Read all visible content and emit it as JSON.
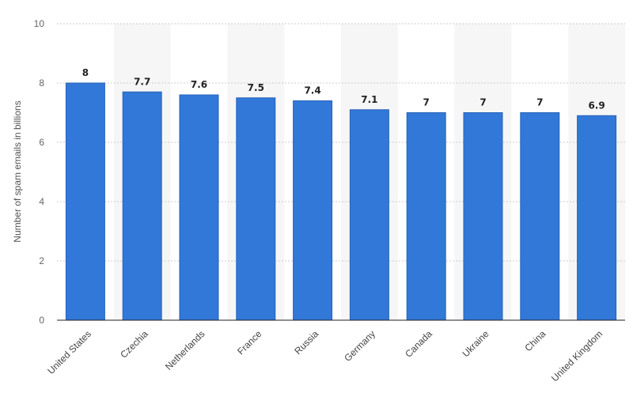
{
  "chart_data": {
    "type": "bar",
    "title": "",
    "xlabel": "",
    "ylabel": "Number of spam emails in billions",
    "categories": [
      "United States",
      "Czechia",
      "Netherlands",
      "France",
      "Russia",
      "Germany",
      "Canada",
      "Ukraine",
      "China",
      "United Kingdom"
    ],
    "values": [
      8,
      7.7,
      7.6,
      7.5,
      7.4,
      7.1,
      7,
      7,
      7,
      6.9
    ],
    "value_labels": [
      "8",
      "7.7",
      "7.6",
      "7.5",
      "7.4",
      "7.1",
      "7",
      "7",
      "7",
      "6.9"
    ],
    "ylim": [
      0,
      10
    ],
    "yticks": [
      0,
      2,
      4,
      6,
      8,
      10
    ],
    "ytick_labels": [
      "0",
      "2",
      "4",
      "6",
      "8",
      "10"
    ],
    "grid": true,
    "legend": "none",
    "colors": {
      "bar": "#3178d8",
      "bar_edge": "#2a63b8",
      "alt_band": "#f6f6f6",
      "grid": "#cccccc",
      "axis": "#222222"
    }
  }
}
